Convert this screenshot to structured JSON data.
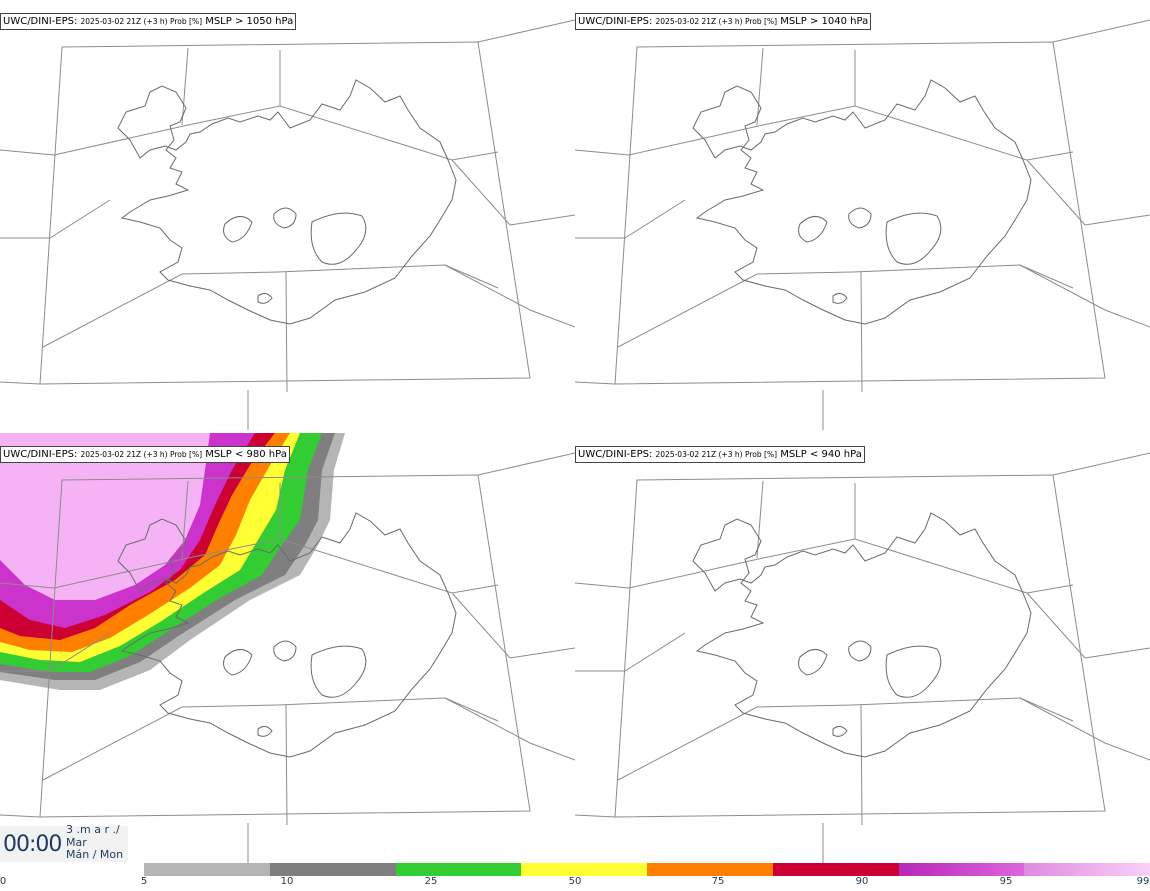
{
  "panels": [
    {
      "model": "UWC/DINI-EPS",
      "run": "2025-03-02 21Z (+3 h) Prob [%]",
      "field": "MSLP > 1050 hPa"
    },
    {
      "model": "UWC/DINI-EPS",
      "run": "2025-03-02 21Z (+3 h) Prob [%]",
      "field": "MSLP > 1040 hPa"
    },
    {
      "model": "UWC/DINI-EPS",
      "run": "2025-03-02 21Z (+3 h) Prob [%]",
      "field": "MSLP < 980 hPa"
    },
    {
      "model": "UWC/DINI-EPS",
      "run": "2025-03-02 21Z (+3 h) Prob [%]",
      "field": "MSLP < 940 hPa"
    }
  ],
  "time": {
    "clock": "00:00",
    "line1": "3 .m a r ./",
    "line2": "Mar",
    "line3": "Mán / Mon"
  },
  "colorbar": {
    "ticks": [
      "0",
      "5",
      "10",
      "25",
      "50",
      "75",
      "90",
      "95",
      "99"
    ],
    "colors": [
      "#b5b5b5",
      "#7f7f7f",
      "#33cc33",
      "#ffff33",
      "#ff7f00",
      "#cc0033",
      "#cc33cc",
      "#f5b3f5"
    ]
  }
}
